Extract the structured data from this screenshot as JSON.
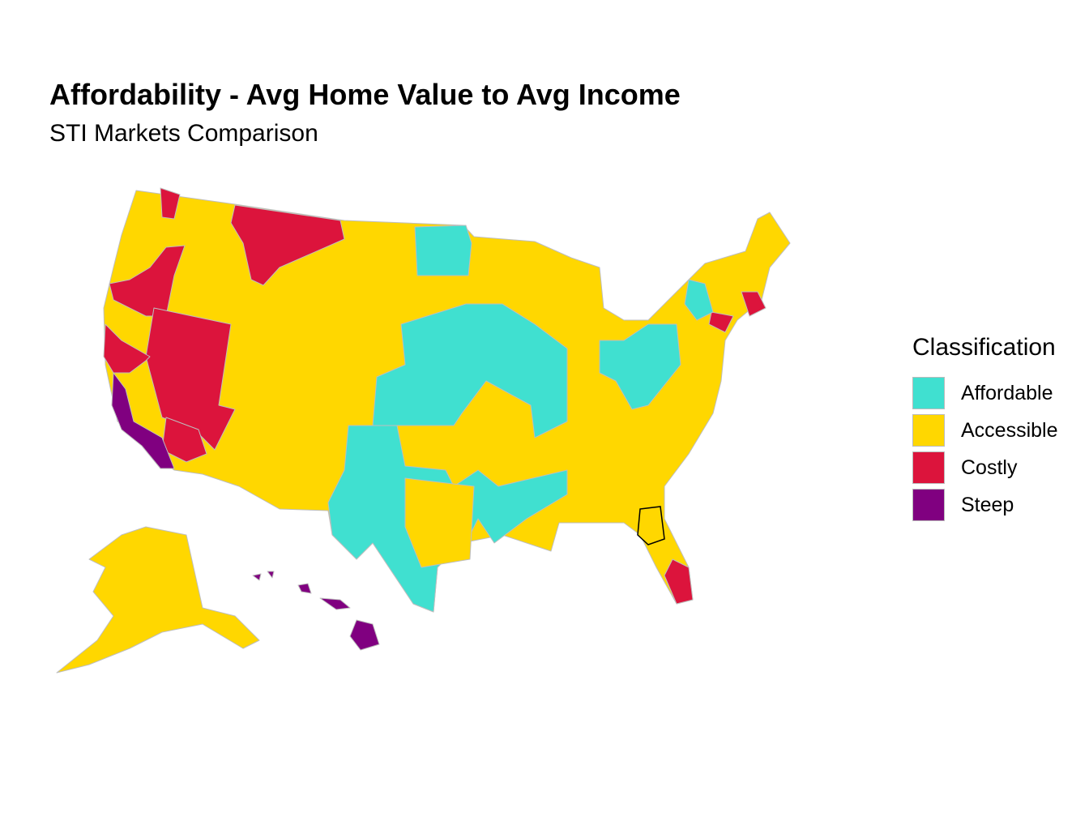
{
  "title": "Affordability - Avg Home Value to Avg Income",
  "subtitle": "STI Markets Comparison",
  "legend": {
    "title": "Classification",
    "items": [
      {
        "label": "Affordable",
        "color": "#40E0D0"
      },
      {
        "label": "Accessible",
        "color": "#FFD700"
      },
      {
        "label": "Costly",
        "color": "#DC143C"
      },
      {
        "label": "Steep",
        "color": "#800080"
      }
    ]
  },
  "border_color": "#BEBEBE",
  "highlight_color": "#000000"
}
